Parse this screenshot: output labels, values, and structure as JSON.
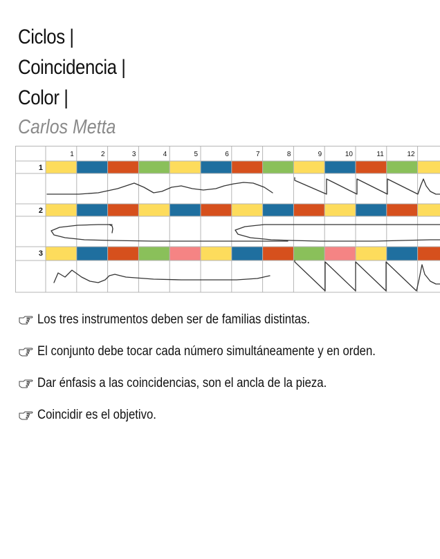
{
  "title_lines": [
    "Ciclos |",
    "Coincidencia |",
    "Color |"
  ],
  "author": "Carlos Metta",
  "score": {
    "column_numbers": [
      "1",
      "2",
      "3",
      "4",
      "5",
      "6",
      "7",
      "8",
      "9",
      "10",
      "11",
      "12"
    ],
    "instruments": [
      {
        "label": "1",
        "colors": [
          "yellow",
          "blue",
          "orange",
          "green",
          "yellow",
          "blue",
          "orange",
          "green",
          "yellow",
          "blue",
          "orange",
          "green",
          "yellow"
        ],
        "gesture": "sustained-waves-then-sawtooth"
      },
      {
        "label": "2",
        "colors": [
          "yellow",
          "blue",
          "orange",
          "yellow",
          "blue",
          "orange",
          "yellow",
          "blue",
          "orange",
          "yellow",
          "blue",
          "orange",
          "yellow"
        ],
        "gesture": "long-loops"
      },
      {
        "label": "3",
        "colors": [
          "yellow",
          "blue",
          "orange",
          "green",
          "pink",
          "yellow",
          "blue",
          "orange",
          "green",
          "pink",
          "yellow",
          "blue",
          "orange"
        ],
        "gesture": "zigzag-then-long-sawtooth"
      }
    ]
  },
  "colors": {
    "yellow": "#fddc5c",
    "blue": "#1f6f9f",
    "orange": "#d6501d",
    "green": "#8ac05a",
    "pink": "#f58484",
    "grid": "#b5b5b5",
    "line": "#333333"
  },
  "pointer_icon": "pointing-hand-icon",
  "instructions": [
    "Los tres instrumentos deben ser de familias distintas.",
    "El conjunto debe tocar cada número simultáneamente y en orden.",
    "Dar énfasis a las coincidencias, son el ancla de la pieza.",
    "Coincidir es el objetivo."
  ]
}
